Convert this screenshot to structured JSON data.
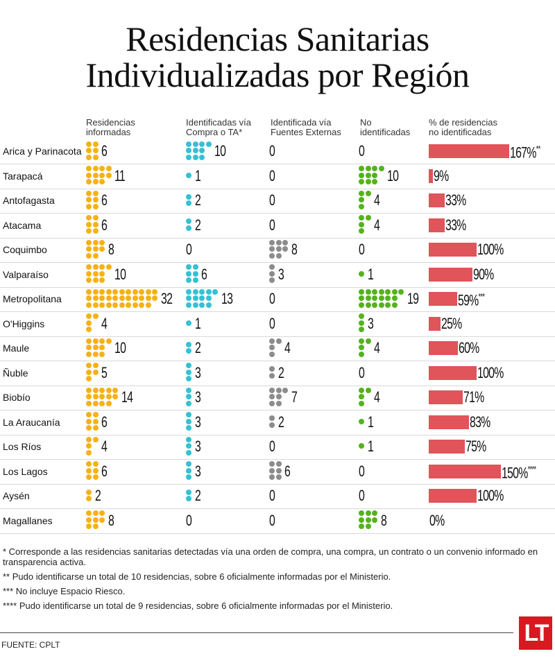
{
  "title_line1": "Residencias Sanitarias",
  "title_line2": "Individualizadas por Región",
  "colors": {
    "informadas": "#f5b216",
    "compra_ta": "#35c1d4",
    "fuentes_externas": "#8c8c8c",
    "no_identificadas": "#55b21e",
    "bar": "#e0545a",
    "logo": "#d71920"
  },
  "chart_data": {
    "type": "table",
    "title": "Residencias Sanitarias Individualizadas por Región",
    "columns": [
      "Residencias informadas",
      "Identificadas vía Compra o TA*",
      "Identificada vía Fuentes Externas",
      "No identificadas",
      "% de residencias no identificadas"
    ],
    "rows": [
      {
        "region": "Arica y Parinacota",
        "informadas": 6,
        "compra_ta": 10,
        "fuentes_externas": 0,
        "no_identificadas": 0,
        "pct": 167,
        "pct_label": "167%",
        "note": "**"
      },
      {
        "region": "Tarapacá",
        "informadas": 11,
        "compra_ta": 1,
        "fuentes_externas": 0,
        "no_identificadas": 10,
        "pct": 9,
        "pct_label": "9%",
        "note": ""
      },
      {
        "region": "Antofagasta",
        "informadas": 6,
        "compra_ta": 2,
        "fuentes_externas": 0,
        "no_identificadas": 4,
        "pct": 33,
        "pct_label": "33%",
        "note": ""
      },
      {
        "region": "Atacama",
        "informadas": 6,
        "compra_ta": 2,
        "fuentes_externas": 0,
        "no_identificadas": 4,
        "pct": 33,
        "pct_label": "33%",
        "note": ""
      },
      {
        "region": "Coquimbo",
        "informadas": 8,
        "compra_ta": 0,
        "fuentes_externas": 8,
        "no_identificadas": 0,
        "pct": 100,
        "pct_label": "100%",
        "note": ""
      },
      {
        "region": "Valparaíso",
        "informadas": 10,
        "compra_ta": 6,
        "fuentes_externas": 3,
        "no_identificadas": 1,
        "pct": 90,
        "pct_label": "90%",
        "note": ""
      },
      {
        "region": "Metropolitana",
        "informadas": 32,
        "compra_ta": 13,
        "fuentes_externas": 0,
        "no_identificadas": 19,
        "pct": 59,
        "pct_label": "59%",
        "note": "***"
      },
      {
        "region": "O'Higgins",
        "informadas": 4,
        "compra_ta": 1,
        "fuentes_externas": 0,
        "no_identificadas": 3,
        "pct": 25,
        "pct_label": "25%",
        "note": ""
      },
      {
        "region": "Maule",
        "informadas": 10,
        "compra_ta": 2,
        "fuentes_externas": 4,
        "no_identificadas": 4,
        "pct": 60,
        "pct_label": "60%",
        "note": ""
      },
      {
        "region": "Ñuble",
        "informadas": 5,
        "compra_ta": 3,
        "fuentes_externas": 2,
        "no_identificadas": 0,
        "pct": 100,
        "pct_label": "100%",
        "note": ""
      },
      {
        "region": "Biobío",
        "informadas": 14,
        "compra_ta": 3,
        "fuentes_externas": 7,
        "no_identificadas": 4,
        "pct": 71,
        "pct_label": "71%",
        "note": ""
      },
      {
        "region": "La Araucanía",
        "informadas": 6,
        "compra_ta": 3,
        "fuentes_externas": 2,
        "no_identificadas": 1,
        "pct": 83,
        "pct_label": "83%",
        "note": ""
      },
      {
        "region": "Los Ríos",
        "informadas": 4,
        "compra_ta": 3,
        "fuentes_externas": 0,
        "no_identificadas": 1,
        "pct": 75,
        "pct_label": "75%",
        "note": ""
      },
      {
        "region": "Los Lagos",
        "informadas": 6,
        "compra_ta": 3,
        "fuentes_externas": 6,
        "no_identificadas": 0,
        "pct": 150,
        "pct_label": "150%",
        "note": "****"
      },
      {
        "region": "Aysén",
        "informadas": 2,
        "compra_ta": 2,
        "fuentes_externas": 0,
        "no_identificadas": 0,
        "pct": 100,
        "pct_label": "100%",
        "note": ""
      },
      {
        "region": "Magallanes",
        "informadas": 8,
        "compra_ta": 0,
        "fuentes_externas": 0,
        "no_identificadas": 8,
        "pct": 0,
        "pct_label": "0%",
        "note": ""
      }
    ],
    "pct_max": 167
  },
  "headers": {
    "informadas_1": "Residencias",
    "informadas_2": "informadas",
    "compra_1": "Identificadas vía",
    "compra_2": "Compra o TA*",
    "fuentes_1": "Identificada vía",
    "fuentes_2": "Fuentes Externas",
    "noid_1": "No",
    "noid_2": "identificadas",
    "pct_1": "% de residencias",
    "pct_2": "no identificadas"
  },
  "notes": [
    "* Corresponde a las residencias sanitarias detectadas vía una orden de compra, una compra, un contrato o un convenio informado en transparencia activa.",
    "** Pudo identificarse un total de 10 residencias, sobre 6 oficialmente informadas por el Ministerio.",
    "*** No incluye Espacio Riesco.",
    "**** Pudo identificarse un total de 9 residencias, sobre 6 oficialmente informadas por el Ministerio."
  ],
  "source": "FUENTE: CPLT",
  "logo_text": "LT"
}
